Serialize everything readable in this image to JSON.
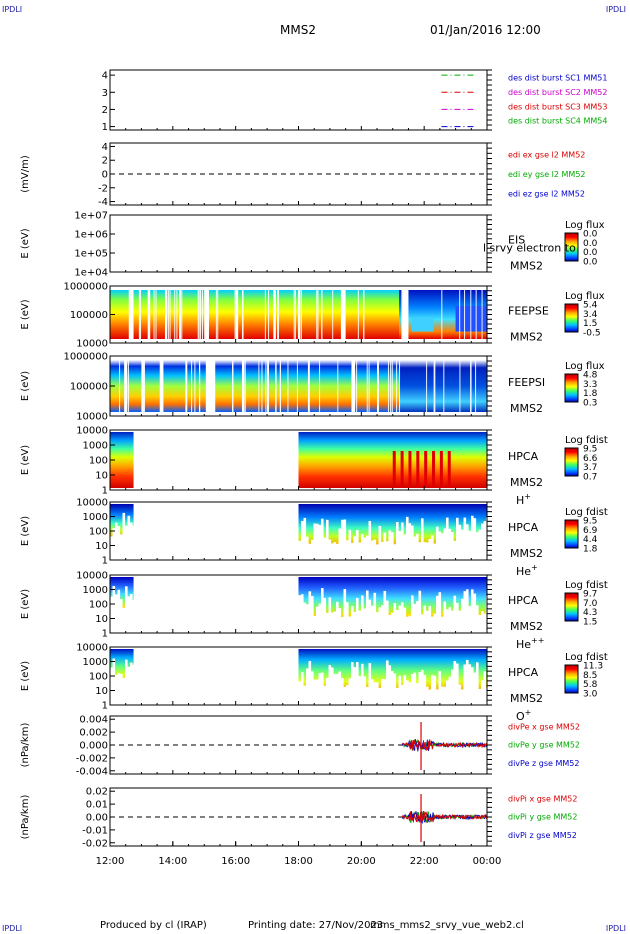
{
  "corners": {
    "tl": "IPDLI",
    "tr": "IPDLI",
    "bl": "IPDLI",
    "br": "IPDLI"
  },
  "header": {
    "title": "MMS2",
    "datetime": "01/Jan/2016 12:00"
  },
  "footer": {
    "produced": "Produced by cl (IRAP)",
    "printing": "Printing date: 27/Nov/2023",
    "file": "mms_mms2_srvy_vue_web2.cl"
  },
  "colors": {
    "blue": "#0000cc",
    "red": "#dd0000",
    "green": "#00aa00",
    "magenta": "#cc00cc"
  },
  "chart_data": [
    {
      "type": "line",
      "id": "p1",
      "yticks": [
        "1",
        "2",
        "3",
        "4"
      ],
      "ylim": [
        0.8,
        4.3
      ],
      "ylabel": "",
      "legend": [
        "des dist burst SC1 MM51",
        "des dist burst SC2 MM52",
        "des dist burst SC3 MM53",
        "des dist burst SC4 MM54"
      ],
      "legend_colors": [
        "#0000cc",
        "#cc00cc",
        "#dd0000",
        "#00aa00"
      ],
      "series": [
        {
          "color": "#00aa00",
          "y": 4,
          "segments": [
            [
              22.55,
              23.6
            ]
          ]
        },
        {
          "color": "#dd0000",
          "y": 3,
          "segments": [
            [
              22.55,
              23.6
            ]
          ]
        },
        {
          "color": "#cc00cc",
          "y": 2,
          "segments": [
            [
              22.55,
              23.6
            ]
          ]
        },
        {
          "color": "#0000cc",
          "y": 1,
          "segments": [
            [
              22.55,
              23.6
            ]
          ]
        }
      ]
    },
    {
      "type": "line",
      "id": "p2",
      "yticks": [
        "-4",
        "-2",
        "0",
        "2",
        "4"
      ],
      "ylim": [
        -4.5,
        4.5
      ],
      "ylabel": "(mV/m)",
      "legend": [
        "edi ex gse l2 MM52",
        "edi ey gse l2 MM52",
        "edi ez gse l2 MM52"
      ],
      "legend_colors": [
        "#dd0000",
        "#00aa00",
        "#0000cc"
      ],
      "zero_line": true
    },
    {
      "type": "heatmap",
      "id": "p3",
      "yticks": [
        "1e+04",
        "1e+05",
        "1e+06",
        "1e+07"
      ],
      "ylabel": "E (eV)",
      "instrument": "EIS",
      "spacecraft": "MMS2",
      "overlay": "l srvy electron to",
      "colorbar_title": "Log flux",
      "colorbar_ticks": [
        "0.0",
        "0.0",
        "0.0",
        "0.0"
      ]
    },
    {
      "type": "heatmap",
      "id": "p4",
      "yticks": [
        "10000",
        "100000",
        "1000000"
      ],
      "ylabel": "E (eV)",
      "instrument": "FEEPSE",
      "spacecraft": "MMS2",
      "colorbar_title": "Log flux",
      "colorbar_ticks": [
        "5.4",
        "3.4",
        "1.5",
        "-0.5"
      ],
      "gaps": [
        [
          12.6,
          12.75
        ],
        [
          13.2,
          13.28
        ],
        [
          13.75,
          13.82
        ],
        [
          14.2,
          14.26
        ],
        [
          15.0,
          15.15
        ],
        [
          16.0,
          16.08
        ],
        [
          17.2,
          17.28
        ],
        [
          18.0,
          18.06
        ],
        [
          19.35,
          19.5
        ],
        [
          21.3,
          21.5
        ]
      ]
    },
    {
      "type": "heatmap",
      "id": "p5",
      "yticks": [
        "10000",
        "100000",
        "1000000"
      ],
      "ylabel": "E (eV)",
      "instrument": "FEEPSI",
      "spacecraft": "MMS2",
      "colorbar_title": "Log flux",
      "colorbar_ticks": [
        "4.8",
        "3.3",
        "1.8",
        "0.3"
      ],
      "gaps": [
        [
          12.45,
          12.55
        ],
        [
          13.0,
          13.08
        ],
        [
          13.6,
          13.7
        ],
        [
          14.4,
          14.46
        ],
        [
          15.05,
          15.35
        ],
        [
          16.2,
          16.28
        ],
        [
          17.0,
          17.06
        ],
        [
          18.3,
          18.36
        ],
        [
          19.7,
          19.8
        ],
        [
          20.5,
          20.56
        ]
      ]
    },
    {
      "type": "heatmap",
      "id": "p6",
      "yticks": [
        "1",
        "10",
        "100",
        "1000",
        "10000"
      ],
      "ylabel": "E (eV)",
      "instrument": "HPCA",
      "spacecraft": "MMS2",
      "species": "H",
      "species_charge": "+",
      "colorbar_title": "Log fdist",
      "colorbar_ticks": [
        "9.5",
        "6.6",
        "3.7",
        "0.7"
      ],
      "data_ranges": [
        [
          12.0,
          12.75
        ],
        [
          18.0,
          24.0
        ]
      ]
    },
    {
      "type": "heatmap",
      "id": "p7",
      "yticks": [
        "1",
        "10",
        "100",
        "1000",
        "10000"
      ],
      "ylabel": "E (eV)",
      "instrument": "HPCA",
      "spacecraft": "MMS2",
      "species": "He",
      "species_charge": "+",
      "colorbar_title": "Log fdist",
      "colorbar_ticks": [
        "9.5",
        "6.9",
        "4.4",
        "1.8"
      ],
      "data_ranges": [
        [
          12.0,
          12.75
        ],
        [
          18.0,
          24.0
        ]
      ]
    },
    {
      "type": "heatmap",
      "id": "p8",
      "yticks": [
        "1",
        "10",
        "100",
        "1000",
        "10000"
      ],
      "ylabel": "E (eV)",
      "instrument": "HPCA",
      "spacecraft": "MMS2",
      "species": "He",
      "species_charge": "++",
      "colorbar_title": "Log fdist",
      "colorbar_ticks": [
        "9.7",
        "7.0",
        "4.3",
        "1.5"
      ],
      "data_ranges": [
        [
          12.0,
          12.75
        ],
        [
          18.0,
          24.0
        ]
      ]
    },
    {
      "type": "heatmap",
      "id": "p9",
      "yticks": [
        "1",
        "10",
        "100",
        "1000",
        "10000"
      ],
      "ylabel": "E (eV)",
      "instrument": "HPCA",
      "spacecraft": "MMS2",
      "species": "O",
      "species_charge": "+",
      "colorbar_title": "Log fdist",
      "colorbar_ticks": [
        "11.3",
        "8.5",
        "5.8",
        "3.0"
      ],
      "data_ranges": [
        [
          12.0,
          12.75
        ],
        [
          18.0,
          24.0
        ]
      ]
    },
    {
      "type": "line",
      "id": "p10",
      "yticks": [
        "-0.004",
        "-0.002",
        "0.000",
        "0.002",
        "0.004"
      ],
      "ylim": [
        -0.0045,
        0.0045
      ],
      "ylabel": "(nPa/km)",
      "legend": [
        "divPe x gse MM52",
        "divPe y gse MM52",
        "divPe z gse MM52"
      ],
      "legend_colors": [
        "#dd0000",
        "#00aa00",
        "#0000cc"
      ],
      "zero_line": true,
      "activity": [
        21.3,
        24.0
      ],
      "spike": 21.9
    },
    {
      "type": "line",
      "id": "p11",
      "yticks": [
        "-0.02",
        "-0.01",
        "0.00",
        "0.01",
        "0.02"
      ],
      "ylim": [
        -0.0225,
        0.0225
      ],
      "ylabel": "(nPa/km)",
      "legend": [
        "divPi x gse MM52",
        "divPi y gse MM52",
        "divPi z gse MM52"
      ],
      "legend_colors": [
        "#dd0000",
        "#00aa00",
        "#0000cc"
      ],
      "zero_line": true,
      "activity": [
        21.3,
        24.0
      ],
      "spike": 21.9
    }
  ],
  "xaxis": {
    "ticks": [
      "12:00",
      "14:00",
      "16:00",
      "18:00",
      "20:00",
      "22:00",
      "00:00"
    ],
    "range": [
      12,
      24
    ]
  }
}
